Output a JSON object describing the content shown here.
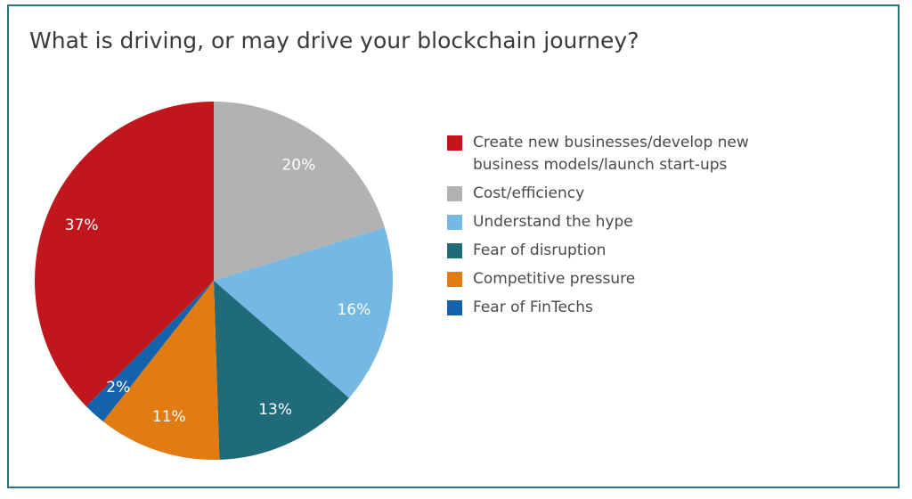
{
  "chart_data": {
    "type": "pie",
    "title": "What is driving, or may drive your blockchain journey?",
    "categories": [
      "Create new businesses/develop new business models/launch start-ups",
      "Cost/efficiency",
      "Understand the hype",
      "Fear of disruption",
      "Competitive pressure",
      "Fear of FinTechs"
    ],
    "values": [
      37,
      20,
      16,
      13,
      11,
      2
    ],
    "value_labels": [
      "37%",
      "20%",
      "16%",
      "13%",
      "11%",
      "2%"
    ],
    "colors": [
      "#c1161b",
      "#b2b2b2",
      "#74b9e4",
      "#1f6b7a",
      "#e07c12",
      "#1562ac"
    ],
    "legend": "right"
  }
}
